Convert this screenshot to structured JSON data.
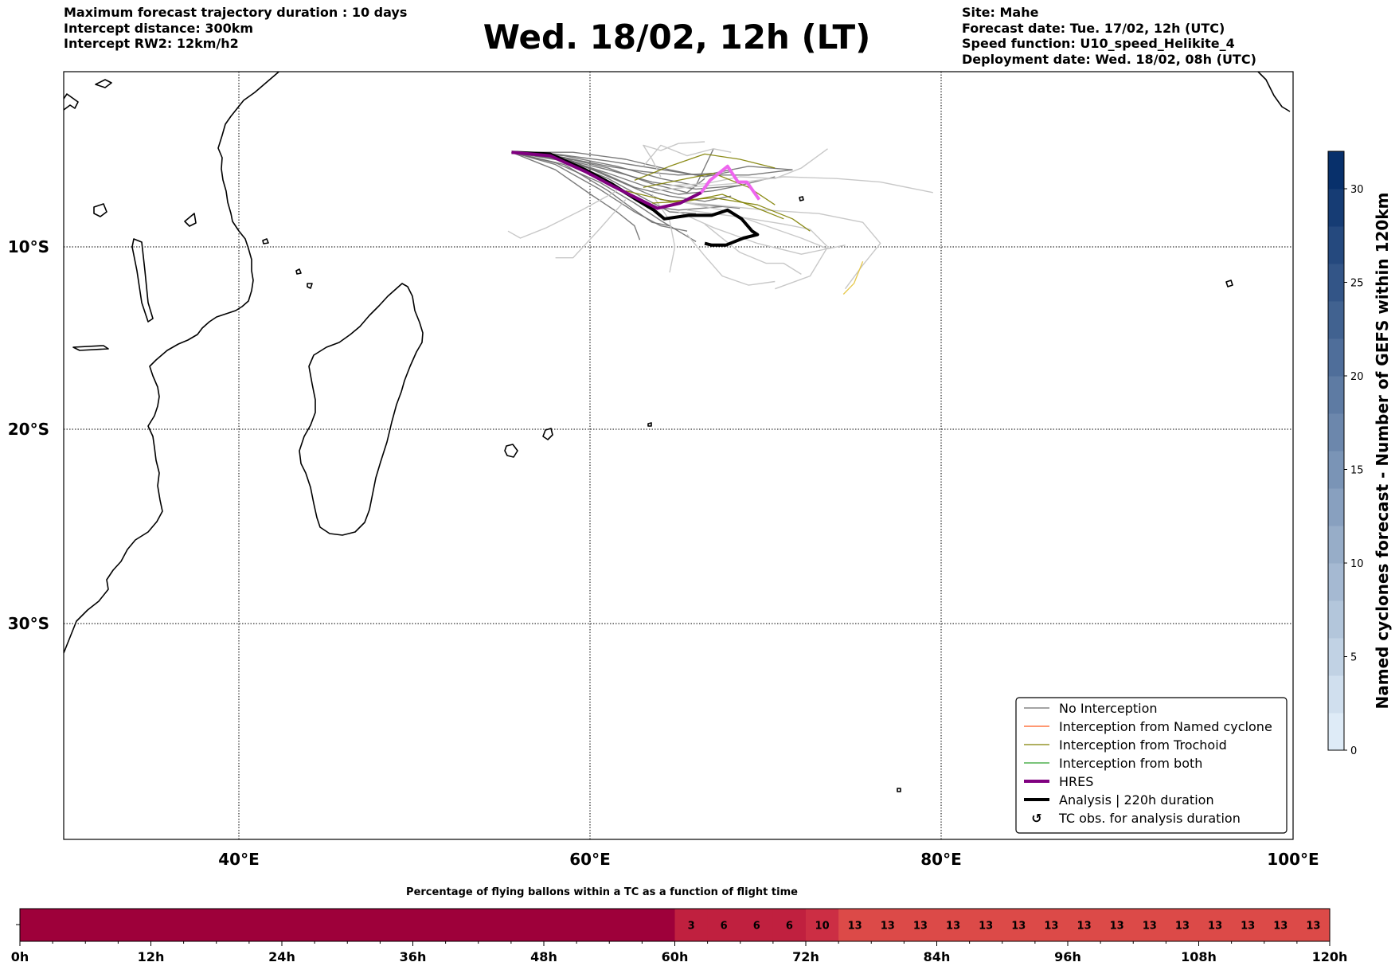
{
  "header": {
    "left_lines": [
      "Maximum forecast trajectory duration : 10 days",
      "Intercept distance: 300km",
      "Intercept RW2: 12km/h2"
    ],
    "title": "Wed. 18/02, 12h (LT)",
    "right_lines": [
      "Site: Mahe",
      "Forecast date: Tue. 17/02, 12h (UTC)",
      "Speed function: U10_speed_Helikite_4",
      "Deployment date: Wed. 18/02, 08h (UTC)"
    ]
  },
  "colors": {
    "no_interception": "#6e6e6e",
    "named_cyclone": "#ff5a1f",
    "trochoid": "#808000",
    "both": "#2ca02c",
    "hres": "#800080",
    "hres_future": "#ee66ee",
    "analysis": "#000000",
    "bar_dark": "#9e003a",
    "bar_mid": "#c0203f",
    "bar_light": "#dc4a48",
    "colorbar_top": "#08306b",
    "colorbar_bottom": "#deebf7"
  },
  "chart_data": [
    {
      "type": "line",
      "title": "Wed. 18/02, 12h (LT)",
      "x_ticks": [
        "40°E",
        "60°E",
        "80°E",
        "100°E"
      ],
      "y_ticks": [
        "10°S",
        "20°S",
        "30°S"
      ],
      "xlim": [
        30,
        100
      ],
      "ylim": [
        -42,
        -0.3
      ],
      "grid": true,
      "legend_position": "bottom-right",
      "legend": [
        {
          "label": "No Interception",
          "style": "thin",
          "color_key": "no_interception"
        },
        {
          "label": "Interception from Named cyclone",
          "style": "thin",
          "color_key": "named_cyclone"
        },
        {
          "label": "Interception from Trochoid",
          "style": "thin",
          "color_key": "trochoid"
        },
        {
          "label": "Interception from both",
          "style": "thin",
          "color_key": "both"
        },
        {
          "label": "HRES",
          "style": "thick",
          "color_key": "hres"
        },
        {
          "label": "Analysis | 220h duration",
          "style": "thick",
          "color_key": "analysis"
        },
        {
          "label": "TC obs. for analysis duration",
          "style": "marker",
          "symbol": "↺"
        }
      ],
      "series": [
        {
          "name": "HRES",
          "x": [
            55.5,
            57.7,
            59.7,
            61.2,
            62.6,
            63.8,
            65.1,
            66.3,
            66.8,
            67.8,
            68.4,
            68.9,
            69.6
          ],
          "y": [
            -4.6,
            -4.8,
            -5.7,
            -6.5,
            -7.2,
            -7.8,
            -7.5,
            -6.9,
            -6.2,
            -5.4,
            -6.3,
            -6.3,
            -7.3
          ]
        },
        {
          "name": "Analysis | 220h duration",
          "x": [
            55.5,
            57.7,
            59.7,
            61.2,
            62.6,
            63.6,
            64.2,
            65.6,
            66.9,
            67.8,
            68.6,
            69.2,
            69.5,
            68.7,
            67.7,
            66.9,
            66.5
          ],
          "y": [
            -4.6,
            -4.7,
            -5.6,
            -6.4,
            -7.3,
            -7.9,
            -8.4,
            -8.2,
            -8.2,
            -7.9,
            -8.4,
            -9.1,
            -9.3,
            -9.5,
            -9.9,
            -9.9,
            -9.8
          ]
        }
      ],
      "ensemble_tracks": [
        {
          "kind": "no_interception",
          "x": [
            55.5,
            58.5,
            61.5,
            64.0,
            66.5,
            68.5
          ],
          "y": [
            -4.6,
            -4.9,
            -6.2,
            -7.3,
            -7.6,
            -7.8
          ]
        },
        {
          "kind": "no_interception",
          "x": [
            55.5,
            58.0,
            60.5,
            62.5,
            64.0,
            65.5
          ],
          "y": [
            -4.6,
            -5.3,
            -6.7,
            -8.0,
            -8.8,
            -9.1
          ]
        },
        {
          "kind": "no_interception",
          "x": [
            55.5,
            58.5,
            61.0,
            63.0,
            65.0,
            67.0,
            68.5
          ],
          "y": [
            -4.6,
            -5.0,
            -5.8,
            -6.5,
            -7.0,
            -6.8,
            -6.5
          ]
        },
        {
          "kind": "no_interception",
          "x": [
            55.5,
            58.0,
            61.0,
            63.5,
            66.0,
            69.0,
            71.5
          ],
          "y": [
            -4.6,
            -4.7,
            -5.1,
            -5.5,
            -5.9,
            -5.9,
            -5.6
          ]
        },
        {
          "kind": "no_interception",
          "x": [
            55.5,
            58.5,
            61.0,
            63.0,
            64.5,
            66.0
          ],
          "y": [
            -4.6,
            -5.1,
            -6.1,
            -7.2,
            -8.0,
            -8.1
          ]
        },
        {
          "kind": "no_interception",
          "x": [
            55.5,
            58.0,
            60.5,
            62.5,
            64.0,
            65.5,
            66.0
          ],
          "y": [
            -4.6,
            -5.2,
            -6.3,
            -7.5,
            -8.5,
            -9.4,
            -9.7
          ]
        },
        {
          "kind": "no_interception",
          "x": [
            55.5,
            58.5,
            61.0,
            63.0,
            65.0,
            67.0,
            69.0,
            71.5
          ],
          "y": [
            -4.6,
            -4.9,
            -5.4,
            -5.7,
            -5.9,
            -5.8,
            -5.4,
            -5.6
          ]
        },
        {
          "kind": "no_interception",
          "x": [
            55.5,
            58.0,
            61.0,
            63.5,
            65.5,
            66.5
          ],
          "y": [
            -4.6,
            -4.8,
            -5.5,
            -6.4,
            -6.9,
            -6.1
          ]
        },
        {
          "kind": "no_interception",
          "x": [
            55.5,
            58.0,
            60.5,
            62.0,
            63.5,
            65.0,
            67.5
          ],
          "y": [
            -4.6,
            -5.0,
            -6.0,
            -7.0,
            -7.7,
            -7.9,
            -7.7
          ]
        },
        {
          "kind": "no_interception",
          "x": [
            55.5,
            59.0,
            62.0,
            64.5,
            66.5,
            68.0
          ],
          "y": [
            -4.6,
            -4.6,
            -5.0,
            -5.6,
            -6.0,
            -5.7
          ]
        },
        {
          "kind": "no_interception",
          "x": [
            55.5,
            58.5,
            61.0,
            62.5,
            63.5,
            64.5
          ],
          "y": [
            -4.6,
            -5.3,
            -6.8,
            -7.9,
            -8.6,
            -8.8
          ]
        },
        {
          "kind": "no_interception",
          "x": [
            55.5,
            58.0,
            60.5,
            62.5,
            64.5,
            66.5,
            68.0
          ],
          "y": [
            -4.6,
            -4.9,
            -5.7,
            -6.6,
            -7.1,
            -7.4,
            -7.1
          ]
        },
        {
          "kind": "no_interception",
          "x": [
            55.5,
            58.5,
            61.5,
            64.0,
            66.0,
            67.0
          ],
          "y": [
            -4.6,
            -4.8,
            -5.4,
            -6.1,
            -6.5,
            -4.4
          ]
        },
        {
          "kind": "no_interception",
          "x": [
            55.5,
            58.0,
            60.0,
            61.5,
            62.5,
            62.8
          ],
          "y": [
            -4.6,
            -5.6,
            -7.0,
            -8.0,
            -8.8,
            -9.6
          ]
        },
        {
          "kind": "no_interception",
          "x": [
            55.5,
            58.5,
            61.0,
            63.5,
            66.0,
            68.5,
            70.5
          ],
          "y": [
            -4.6,
            -5.0,
            -5.6,
            -6.3,
            -6.7,
            -6.5,
            -6.0
          ]
        },
        {
          "kind": "no_interception_faded",
          "x": [
            64.5,
            66.5,
            68.5,
            70.5,
            72.0,
            73.5
          ],
          "y": [
            -6.5,
            -6.4,
            -6.0,
            -6.1,
            -5.5,
            -4.4
          ]
        },
        {
          "kind": "no_interception_faded",
          "x": [
            63.5,
            65.5,
            68.0,
            71.0,
            74.0,
            76.5,
            79.5
          ],
          "y": [
            -6.8,
            -6.6,
            -6.4,
            -6.0,
            -6.1,
            -6.3,
            -6.9
          ]
        },
        {
          "kind": "no_interception_faded",
          "x": [
            64.5,
            67.0,
            70.0,
            73.0,
            75.5,
            76.5,
            75.5,
            74.5
          ],
          "y": [
            -7.4,
            -7.6,
            -7.9,
            -8.1,
            -8.6,
            -9.8,
            -11.0,
            -12.3
          ]
        },
        {
          "kind": "no_interception_faded",
          "x": [
            63.5,
            64.5,
            64.8,
            64.5
          ],
          "y": [
            -7.0,
            -8.5,
            -10.0,
            -11.4
          ]
        },
        {
          "kind": "no_interception_faded",
          "x": [
            61.5,
            59.5,
            57.5,
            56.0,
            55.3
          ],
          "y": [
            -6.8,
            -7.9,
            -8.9,
            -9.5,
            -9.1
          ]
        },
        {
          "kind": "no_interception_faded",
          "x": [
            62.0,
            60.5,
            59.0,
            58.0
          ],
          "y": [
            -7.3,
            -9.0,
            -10.6,
            -10.6
          ]
        },
        {
          "kind": "no_interception_faded",
          "x": [
            65.5,
            68.5,
            71.0,
            72.5,
            73.5,
            72.5,
            70.5
          ],
          "y": [
            -7.9,
            -8.3,
            -8.7,
            -9.0,
            -10.0,
            -11.6,
            -12.3
          ]
        },
        {
          "kind": "no_interception_faded",
          "x": [
            64.0,
            63.5,
            63.0,
            64.0,
            65.0,
            66.5
          ],
          "y": [
            -6.0,
            -5.0,
            -4.2,
            -4.5,
            -4.1,
            -4.0
          ]
        },
        {
          "kind": "no_interception_faded",
          "x": [
            66.5,
            68.5,
            70.0,
            71.0,
            72.0
          ],
          "y": [
            -8.7,
            -10.3,
            -10.9,
            -10.9,
            -11.5
          ]
        },
        {
          "kind": "no_interception_faded",
          "x": [
            65.0,
            67.5,
            70.0,
            72.0,
            73.5,
            74.5
          ],
          "y": [
            -7.4,
            -7.9,
            -8.8,
            -9.5,
            -10.1,
            -9.9
          ]
        },
        {
          "kind": "no_interception_faded",
          "x": [
            63.0,
            64.0,
            65.5,
            67.0,
            68.0
          ],
          "y": [
            -5.4,
            -4.2,
            -4.8,
            -4.4,
            -4.6
          ]
        },
        {
          "kind": "no_interception_faded",
          "x": [
            65.0,
            67.0,
            69.5,
            72.0,
            74.0
          ],
          "y": [
            -8.0,
            -8.9,
            -9.8,
            -10.4,
            -10.0
          ]
        },
        {
          "kind": "no_interception_faded",
          "x": [
            65.5,
            66.5,
            67.5,
            69.0,
            70.5
          ],
          "y": [
            -9.3,
            -10.5,
            -11.6,
            -12.1,
            -11.9
          ]
        },
        {
          "kind": "trochoid",
          "x": [
            62.5,
            64.5,
            66.5,
            68.5,
            70.5
          ],
          "y": [
            -6.2,
            -5.4,
            -4.7,
            -5.0,
            -5.5
          ]
        },
        {
          "kind": "trochoid",
          "x": [
            62.0,
            64.5,
            67.0,
            69.5,
            71.5,
            72.5
          ],
          "y": [
            -6.8,
            -7.4,
            -7.2,
            -7.6,
            -8.4,
            -9.1
          ]
        },
        {
          "kind": "trochoid",
          "x": [
            63.0,
            65.0,
            67.0,
            69.0,
            70.5
          ],
          "y": [
            -6.6,
            -6.2,
            -5.8,
            -6.6,
            -7.6
          ]
        },
        {
          "kind": "trochoid",
          "x": [
            63.5,
            65.5,
            67.5,
            69.5,
            71.0
          ],
          "y": [
            -7.5,
            -7.4,
            -7.0,
            -7.8,
            -8.4
          ]
        },
        {
          "kind": "trochoid_faded",
          "x": [
            75.5,
            75.0,
            74.4
          ],
          "y": [
            -10.8,
            -12.0,
            -12.6
          ]
        }
      ],
      "colorbar": {
        "label": "Named cyclones forecast - Number of GEFS within 120km",
        "ticks": [
          0,
          5,
          10,
          15,
          20,
          25,
          30
        ],
        "range": [
          0,
          32
        ]
      }
    },
    {
      "type": "heatmap",
      "title": "Percentage of flying ballons within a TC as a function of flight time",
      "x_ticks": [
        "0h",
        "12h",
        "24h",
        "36h",
        "48h",
        "60h",
        "72h",
        "84h",
        "96h",
        "108h",
        "120h"
      ],
      "bin_hours": 3,
      "values": [
        0,
        0,
        0,
        0,
        0,
        0,
        0,
        0,
        0,
        0,
        0,
        0,
        0,
        0,
        0,
        0,
        0,
        0,
        0,
        0,
        3,
        6,
        6,
        6,
        10,
        13,
        13,
        13,
        13,
        13,
        13,
        13,
        13,
        13,
        13,
        13,
        13,
        13,
        13,
        13
      ],
      "labels": [
        "",
        "",
        "",
        "",
        "",
        "",
        "",
        "",
        "",
        "",
        "",
        "",
        "",
        "",
        "",
        "",
        "",
        "",
        "",
        "",
        "3",
        "6",
        "6",
        "6",
        "10",
        "13",
        "13",
        "13",
        "13",
        "13",
        "13",
        "13",
        "13",
        "13",
        "13",
        "13",
        "13",
        "13",
        "13",
        "13"
      ]
    }
  ]
}
